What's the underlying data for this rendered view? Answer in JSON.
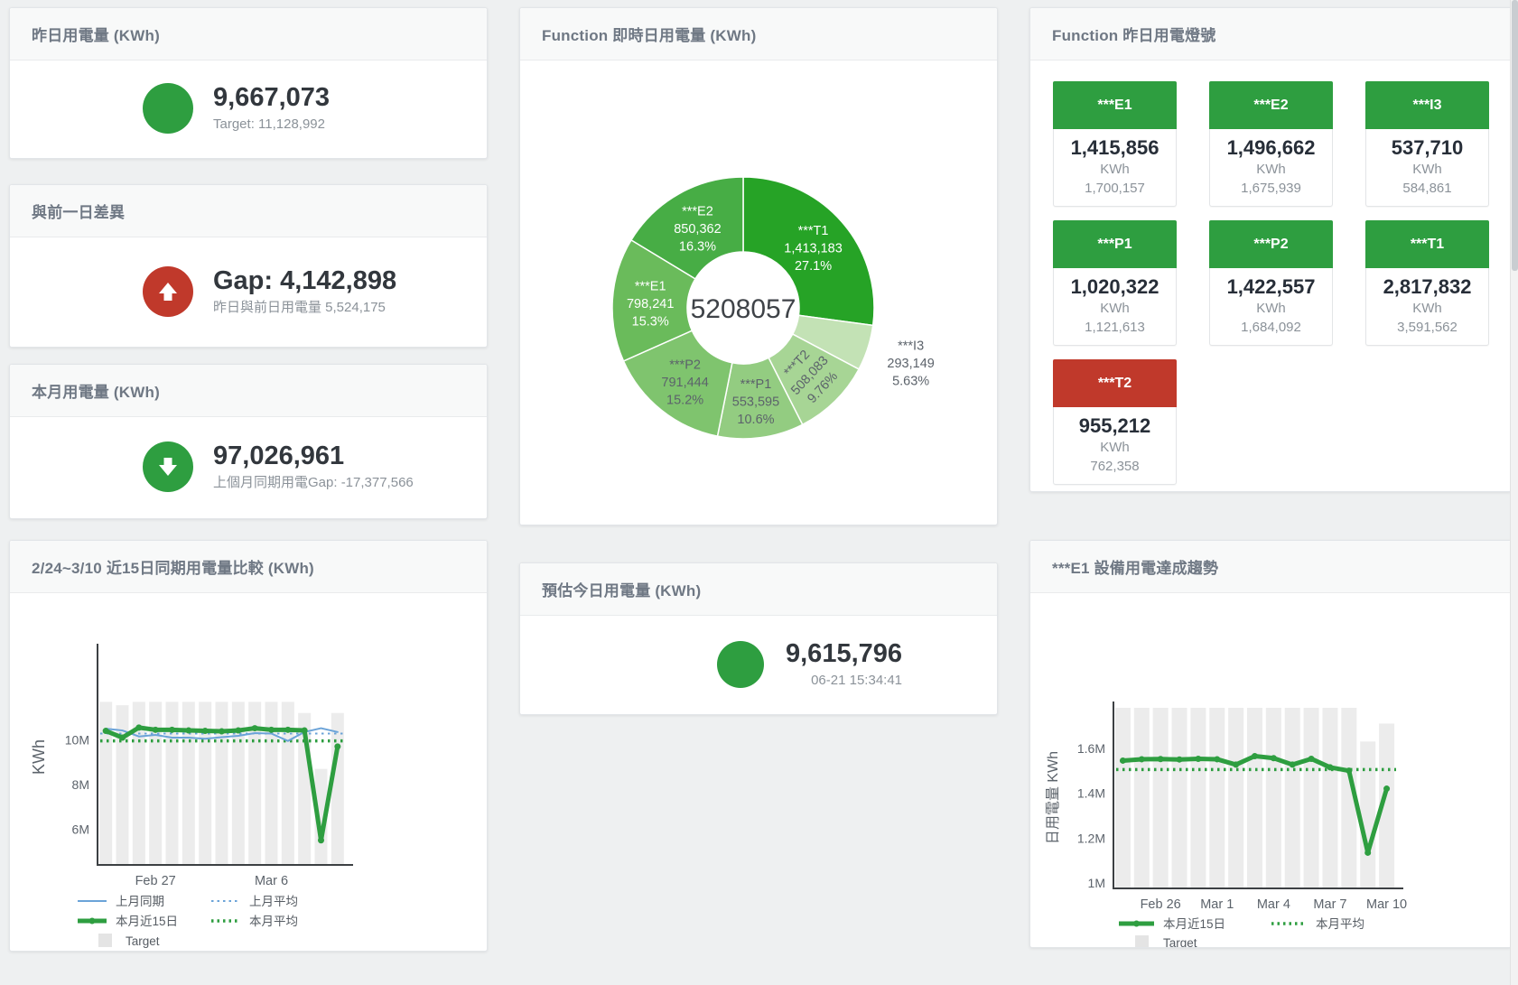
{
  "colors": {
    "green": "#2e9e40",
    "red": "#c0392b",
    "blue": "#6ba3d8",
    "target_bar": "#ececec",
    "axis": "#3c4043",
    "tick": "#5c636b",
    "legend_text": "#555b62",
    "donut_center_text": "#3f4348"
  },
  "cards": {
    "yesterday": {
      "title": "昨日用電量 (KWh)",
      "value": "9,667,073",
      "sub": "Target: 11,128,992"
    },
    "gap": {
      "title": "與前一日差異",
      "value": "Gap: 4,142,898",
      "sub": "昨日與前日用電量 5,524,175"
    },
    "month": {
      "title": "本月用電量 (KWh)",
      "value": "97,026,961",
      "sub": "上個月同期用電Gap: -17,377,566"
    },
    "forecast": {
      "title": "預估今日用電量 (KWh)",
      "value": "9,615,796",
      "sub": "06-21 15:34:41"
    }
  },
  "lights": {
    "title": "Function 昨日用電燈號",
    "tiles": [
      {
        "name": "***E1",
        "value": "1,415,856",
        "unit": "KWh",
        "target": "1,700,157",
        "status": "green"
      },
      {
        "name": "***E2",
        "value": "1,496,662",
        "unit": "KWh",
        "target": "1,675,939",
        "status": "green"
      },
      {
        "name": "***I3",
        "value": "537,710",
        "unit": "KWh",
        "target": "584,861",
        "status": "green"
      },
      {
        "name": "***P1",
        "value": "1,020,322",
        "unit": "KWh",
        "target": "1,121,613",
        "status": "green"
      },
      {
        "name": "***P2",
        "value": "1,422,557",
        "unit": "KWh",
        "target": "1,684,092",
        "status": "green"
      },
      {
        "name": "***T1",
        "value": "2,817,832",
        "unit": "KWh",
        "target": "3,591,562",
        "status": "green"
      },
      {
        "name": "***T2",
        "value": "955,212",
        "unit": "KWh",
        "target": "762,358",
        "status": "red"
      }
    ]
  },
  "chart_data": [
    {
      "id": "donut",
      "type": "pie",
      "title": "Function 即時日用電量 (KWh)",
      "center_total": "5208057",
      "unit": "KWh",
      "slices": [
        {
          "name": "***T1",
          "value": 1413183,
          "display": "1,413,183",
          "pct": "27.1%",
          "color": "#26a326",
          "text": "#ffffff"
        },
        {
          "name": "***I3",
          "value": 293149,
          "display": "293,149",
          "pct": "5.63%",
          "color": "#c3e2b5",
          "text": "#5c636b",
          "outside": true
        },
        {
          "name": "***T2",
          "value": 508083,
          "display": "508,083",
          "pct": "9.76%",
          "color": "#a7d595",
          "text": "#5c636b",
          "rotate": -47
        },
        {
          "name": "***P1",
          "value": 553595,
          "display": "553,595",
          "pct": "10.6%",
          "color": "#93cc81",
          "text": "#5c636b"
        },
        {
          "name": "***P2",
          "value": 791444,
          "display": "791,444",
          "pct": "15.2%",
          "color": "#7fc46e",
          "text": "#5c636b"
        },
        {
          "name": "***E1",
          "value": 798241,
          "display": "798,241",
          "pct": "15.3%",
          "color": "#6abb5b",
          "text": "#ffffff"
        },
        {
          "name": "***E2",
          "value": 850362,
          "display": "850,362",
          "pct": "16.3%",
          "color": "#47ad45",
          "text": "#ffffff"
        }
      ]
    },
    {
      "id": "compare",
      "type": "line",
      "title": "2/24~3/10 近15日同期用電量比較 (KWh)",
      "ylabel": "KWh",
      "unit_scale": "millions KWh",
      "n": 15,
      "ylim": [
        4.4,
        14.06
      ],
      "yticks": [
        {
          "v": 6,
          "label": "6M"
        },
        {
          "v": 8,
          "label": "8M"
        },
        {
          "v": 10,
          "label": "10M"
        }
      ],
      "xticks": [
        {
          "i": 3,
          "label": "Feb 27"
        },
        {
          "i": 10,
          "label": "Mar 6"
        }
      ],
      "target": {
        "name": "Target",
        "values": [
          11.7,
          11.55,
          11.7,
          11.7,
          11.7,
          11.7,
          11.7,
          11.7,
          11.7,
          11.7,
          11.7,
          11.7,
          11.2,
          8.7,
          11.2
        ]
      },
      "series": [
        {
          "name": "上月同期",
          "color": "blue",
          "width": 2,
          "marker": false,
          "values": [
            10.5,
            10.42,
            10.15,
            10.22,
            10.1,
            10.1,
            10.05,
            10.12,
            10.18,
            10.3,
            10.28,
            9.95,
            10.35,
            10.52,
            10.35
          ]
        },
        {
          "name": "本月近15日",
          "color": "green",
          "width": 5,
          "marker": true,
          "values": [
            10.4,
            10.1,
            10.55,
            10.45,
            10.45,
            10.42,
            10.4,
            10.38,
            10.42,
            10.52,
            10.45,
            10.45,
            10.42,
            5.5,
            9.7
          ]
        }
      ],
      "avg": [
        {
          "name": "上月平均",
          "color": "blue",
          "value": 10.28
        },
        {
          "name": "本月平均",
          "color": "green",
          "value": 9.95
        }
      ],
      "legend_target": "Target"
    },
    {
      "id": "e1trend",
      "type": "line",
      "title": "***E1 設備用電達成趨勢",
      "ylabel": "日用電量 KWh",
      "unit_scale": "millions KWh",
      "n": 15,
      "ylim": [
        0.976,
        1.784
      ],
      "yticks": [
        {
          "v": 1,
          "label": "1M"
        },
        {
          "v": 1.2,
          "label": "1.2M"
        },
        {
          "v": 1.4,
          "label": "1.4M"
        },
        {
          "v": 1.6,
          "label": "1.6M"
        }
      ],
      "xticks": [
        {
          "i": 2,
          "label": "Feb 26"
        },
        {
          "i": 5,
          "label": "Mar 1"
        },
        {
          "i": 8,
          "label": "Mar 4"
        },
        {
          "i": 11,
          "label": "Mar 7"
        },
        {
          "i": 14,
          "label": "Mar 10"
        }
      ],
      "target": {
        "name": "Target",
        "values": [
          1.78,
          1.78,
          1.78,
          1.78,
          1.78,
          1.78,
          1.78,
          1.78,
          1.78,
          1.78,
          1.78,
          1.78,
          1.78,
          1.63,
          1.71
        ]
      },
      "series": [
        {
          "name": "本月近15日",
          "color": "green",
          "width": 5,
          "marker": true,
          "values": [
            1.545,
            1.551,
            1.552,
            1.55,
            1.553,
            1.551,
            1.527,
            1.565,
            1.556,
            1.527,
            1.553,
            1.515,
            1.5,
            1.135,
            1.42
          ]
        }
      ],
      "avg": [
        {
          "name": "本月平均",
          "color": "green",
          "value": 1.505
        }
      ],
      "legend_target": "Target"
    }
  ]
}
